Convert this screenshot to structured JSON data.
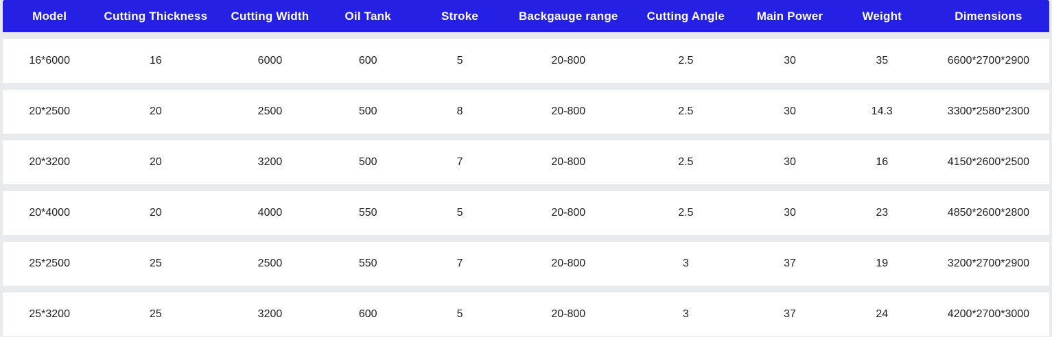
{
  "table": {
    "columns": [
      "Model",
      "Cutting Thickness",
      "Cutting Width",
      "Oil Tank",
      "Stroke",
      "Backgauge range",
      "Cutting Angle",
      "Main Power",
      "Weight",
      "Dimensions"
    ],
    "rows": [
      [
        "16*6000",
        "16",
        "6000",
        "600",
        "5",
        "20-800",
        "2.5",
        "30",
        "35",
        "6600*2700*2900"
      ],
      [
        "20*2500",
        "20",
        "2500",
        "500",
        "8",
        "20-800",
        "2.5",
        "30",
        "14.3",
        "3300*2580*2300"
      ],
      [
        "20*3200",
        "20",
        "3200",
        "500",
        "7",
        "20-800",
        "2.5",
        "30",
        "16",
        "4150*2600*2500"
      ],
      [
        "20*4000",
        "20",
        "4000",
        "550",
        "5",
        "20-800",
        "2.5",
        "30",
        "23",
        "4850*2600*2800"
      ],
      [
        "25*2500",
        "25",
        "2500",
        "550",
        "7",
        "20-800",
        "3",
        "37",
        "19",
        "3200*2700*2900"
      ],
      [
        "25*3200",
        "25",
        "3200",
        "600",
        "5",
        "20-800",
        "3",
        "37",
        "24",
        "4200*2700*3000"
      ]
    ]
  },
  "colors": {
    "header_background": "#2420e4",
    "header_text": "#ffffff",
    "row_background": "#ffffff",
    "page_background": "#e7ebee",
    "body_text": "#212121"
  }
}
